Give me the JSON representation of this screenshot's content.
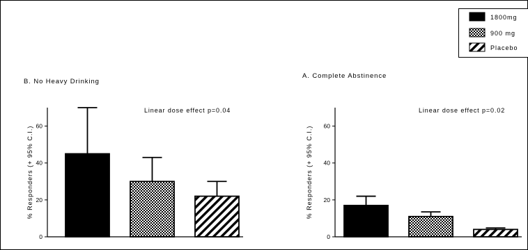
{
  "legend": {
    "entries": [
      {
        "label": "1800mg",
        "pattern": "solid"
      },
      {
        "label": "900 mg",
        "pattern": "checker"
      },
      {
        "label": "Placebo",
        "pattern": "diagonal"
      }
    ]
  },
  "colors": {
    "ink": "#000000",
    "background": "#ffffff"
  },
  "chart_data": [
    {
      "type": "bar",
      "title": "B. No Heavy Drinking",
      "annotation": "Linear dose effect p=0.04",
      "ylabel": "% Responders (+ 95% C.I.)",
      "xlabel": "",
      "categories": [
        "1800mg",
        "900 mg",
        "Placebo"
      ],
      "values": [
        45,
        30,
        22
      ],
      "error_upper": [
        70,
        43,
        30
      ],
      "ylim": [
        0,
        70
      ],
      "yticks": [
        "0",
        "20",
        "40",
        "60"
      ],
      "grid": false
    },
    {
      "type": "bar",
      "title": "A. Complete Abstinence",
      "annotation": "Linear dose effect p=0.02",
      "ylabel": "% Responders (+ 95% C.I.)",
      "xlabel": "",
      "categories": [
        "1800mg",
        "900 mg",
        "Placebo"
      ],
      "values": [
        17,
        11,
        4
      ],
      "error_upper": [
        22,
        13.5,
        4.8
      ],
      "ylim": [
        0,
        70
      ],
      "yticks": [
        "0",
        "20",
        "40",
        "60"
      ],
      "grid": false
    }
  ]
}
